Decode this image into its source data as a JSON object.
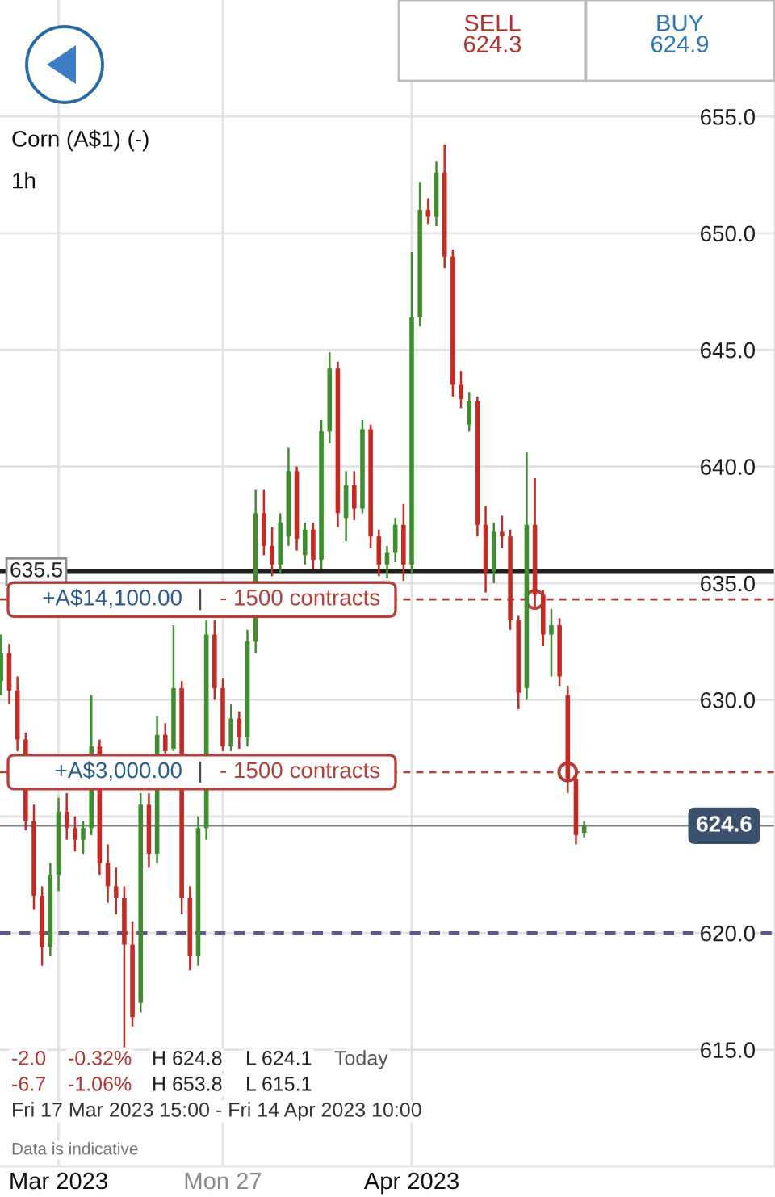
{
  "chart_data": {
    "type": "candlestick",
    "title": "Corn (A$1) (-)",
    "subtitle": "1h",
    "categories": [
      null,
      null,
      null,
      null,
      null,
      null,
      null,
      "Mar 2023",
      null,
      null,
      null,
      null,
      null,
      null,
      null,
      null,
      null,
      null,
      null,
      null,
      null,
      null,
      null,
      null,
      null,
      null,
      null,
      "Mon 27",
      null,
      null,
      null,
      null,
      null,
      null,
      null,
      null,
      null,
      null,
      null,
      null,
      null,
      null,
      null,
      null,
      null,
      null,
      null,
      null,
      null,
      null,
      "Apr 2023",
      null,
      null,
      null,
      null,
      null,
      null,
      null,
      null,
      null,
      null,
      null,
      null,
      null,
      null,
      null,
      null,
      null,
      null,
      null,
      null,
      null
    ],
    "ohlc": [
      [
        630.8,
        632.8,
        630.2,
        632.0
      ],
      [
        632.0,
        632.4,
        629.8,
        630.4
      ],
      [
        630.4,
        631.0,
        627.8,
        628.3
      ],
      [
        628.3,
        628.6,
        624.4,
        624.8
      ],
      [
        624.8,
        625.5,
        621.0,
        621.6
      ],
      [
        621.6,
        622.0,
        618.6,
        619.4
      ],
      [
        619.4,
        623.0,
        619.0,
        622.5
      ],
      [
        622.5,
        625.8,
        621.8,
        625.2
      ],
      [
        625.2,
        626.0,
        624.0,
        624.5
      ],
      [
        624.5,
        625.0,
        623.5,
        624.0
      ],
      [
        624.0,
        624.8,
        623.4,
        624.5
      ],
      [
        624.5,
        630.2,
        624.2,
        628.0
      ],
      [
        628.0,
        628.3,
        622.5,
        623.0
      ],
      [
        623.0,
        623.8,
        621.3,
        622.0
      ],
      [
        622.0,
        622.8,
        620.8,
        621.5
      ],
      [
        621.5,
        622.0,
        615.1,
        619.5
      ],
      [
        619.5,
        620.5,
        616.0,
        616.4
      ],
      [
        617.0,
        626.0,
        616.6,
        625.5
      ],
      [
        625.5,
        626.0,
        622.8,
        623.4
      ],
      [
        623.4,
        629.3,
        623.0,
        628.5
      ],
      [
        628.5,
        629.0,
        627.7,
        627.8
      ],
      [
        627.9,
        633.2,
        627.8,
        630.5
      ],
      [
        630.5,
        630.8,
        620.8,
        621.5
      ],
      [
        621.5,
        622.0,
        618.4,
        619.0
      ],
      [
        619.0,
        625.0,
        618.6,
        624.5
      ],
      [
        624.5,
        633.4,
        624.0,
        632.8
      ],
      [
        632.8,
        633.4,
        630.0,
        630.5
      ],
      [
        630.5,
        630.9,
        627.8,
        628.0
      ],
      [
        628.0,
        629.8,
        627.8,
        629.2
      ],
      [
        629.2,
        629.5,
        627.9,
        628.4
      ],
      [
        628.4,
        633.0,
        628.0,
        632.5
      ],
      [
        632.5,
        639.0,
        632.0,
        638.0
      ],
      [
        638.0,
        639.0,
        636.2,
        636.6
      ],
      [
        636.6,
        637.4,
        635.3,
        635.8
      ],
      [
        635.8,
        638.0,
        635.4,
        637.6
      ],
      [
        637.0,
        640.8,
        636.6,
        639.8
      ],
      [
        639.8,
        640.0,
        636.4,
        636.9
      ],
      [
        636.2,
        637.6,
        635.8,
        637.3
      ],
      [
        637.3,
        637.6,
        635.6,
        636.0
      ],
      [
        636.0,
        642.0,
        635.6,
        641.5
      ],
      [
        641.5,
        644.9,
        641.0,
        644.2
      ],
      [
        644.2,
        644.5,
        637.4,
        638.0
      ],
      [
        637.8,
        639.8,
        636.8,
        639.2
      ],
      [
        639.2,
        639.8,
        637.7,
        638.2
      ],
      [
        638.2,
        642.0,
        638.0,
        641.6
      ],
      [
        641.6,
        641.8,
        636.5,
        637.0
      ],
      [
        637.0,
        637.3,
        635.3,
        635.8
      ],
      [
        635.8,
        636.6,
        635.2,
        636.3
      ],
      [
        636.3,
        637.8,
        635.9,
        637.5
      ],
      [
        637.5,
        638.4,
        635.1,
        635.8
      ],
      [
        635.8,
        649.2,
        635.4,
        646.4
      ],
      [
        646.4,
        652.2,
        646.0,
        651.0
      ],
      [
        651.0,
        651.5,
        650.4,
        650.7
      ],
      [
        650.7,
        653.1,
        650.3,
        652.6
      ],
      [
        652.6,
        653.8,
        648.5,
        649.0
      ],
      [
        649.0,
        649.3,
        643.0,
        643.5
      ],
      [
        643.5,
        644.1,
        642.5,
        642.9
      ],
      [
        641.8,
        643.2,
        641.5,
        642.8
      ],
      [
        642.8,
        643.0,
        637.0,
        637.5
      ],
      [
        637.5,
        638.3,
        634.6,
        635.5
      ],
      [
        635.5,
        637.6,
        635.0,
        637.2
      ],
      [
        637.2,
        637.9,
        636.5,
        637.0
      ],
      [
        637.0,
        637.3,
        633.0,
        633.4
      ],
      [
        633.4,
        633.6,
        629.6,
        630.3
      ],
      [
        630.5,
        640.6,
        630.0,
        637.5
      ],
      [
        637.5,
        639.5,
        634.0,
        634.5
      ],
      [
        634.5,
        634.7,
        632.3,
        632.8
      ],
      [
        632.8,
        633.9,
        631.0,
        633.2
      ],
      [
        633.2,
        633.5,
        630.6,
        631.0
      ],
      [
        630.2,
        630.6,
        626.0,
        626.6
      ],
      [
        626.6,
        626.9,
        623.8,
        624.2
      ],
      [
        624.3,
        624.8,
        624.1,
        624.6
      ]
    ],
    "colors": [
      "#3e8e30",
      "#c52b22",
      "#c52b22",
      "#c52b22",
      "#c52b22",
      "#c52b22",
      "#3e8e30",
      "#3e8e30",
      "#c52b22",
      "#c52b22",
      "#3e8e30",
      "#3e8e30",
      "#c52b22",
      "#c52b22",
      "#c52b22",
      "#c52b22",
      "#c52b22",
      "#3e8e30",
      "#c52b22",
      "#3e8e30",
      "#c52b22",
      "#3e8e30",
      "#c52b22",
      "#c52b22",
      "#3e8e30",
      "#3e8e30",
      "#c52b22",
      "#c52b22",
      "#3e8e30",
      "#c52b22",
      "#3e8e30",
      "#3e8e30",
      "#c52b22",
      "#c52b22",
      "#3e8e30",
      "#3e8e30",
      "#c52b22",
      "#3e8e30",
      "#c52b22",
      "#3e8e30",
      "#3e8e30",
      "#c52b22",
      "#3e8e30",
      "#c52b22",
      "#3e8e30",
      "#c52b22",
      "#c52b22",
      "#3e8e30",
      "#3e8e30",
      "#c52b22",
      "#3e8e30",
      "#3e8e30",
      "#c52b22",
      "#3e8e30",
      "#c52b22",
      "#c52b22",
      "#c52b22",
      "#3e8e30",
      "#c52b22",
      "#c52b22",
      "#3e8e30",
      "#c52b22",
      "#c52b22",
      "#c52b22",
      "#3e8e30",
      "#c52b22",
      "#c52b22",
      "#3e8e30",
      "#c52b22",
      "#c52b22",
      "#c52b22",
      "#3e8e30"
    ],
    "series": [
      {
        "type": "scatter",
        "color": "#b5403a",
        "marker": "circle",
        "values": [
          null,
          null,
          null,
          null,
          null,
          null,
          null,
          null,
          null,
          null,
          null,
          null,
          null,
          null,
          null,
          null,
          null,
          null,
          null,
          null,
          null,
          null,
          null,
          null,
          null,
          null,
          null,
          null,
          null,
          null,
          null,
          null,
          null,
          null,
          null,
          null,
          null,
          null,
          null,
          null,
          null,
          null,
          null,
          null,
          null,
          null,
          null,
          null,
          null,
          null,
          null,
          null,
          null,
          null,
          null,
          null,
          null,
          null,
          null,
          null,
          null,
          null,
          null,
          null,
          null,
          634.3,
          null,
          null,
          null,
          626.9,
          null,
          null
        ]
      }
    ],
    "ylim": [
      610.0,
      660.0
    ],
    "yticks": [
      {
        "value": 615,
        "label": "615.0"
      },
      {
        "value": 620,
        "label": "620.0"
      },
      {
        "value": 625,
        "label": null
      },
      {
        "value": 630,
        "label": "630.0"
      },
      {
        "value": 635,
        "label": "635.0"
      },
      {
        "value": 640,
        "label": "640.0"
      },
      {
        "value": 645,
        "label": "645.0"
      },
      {
        "value": 650,
        "label": "650.0"
      },
      {
        "value": 655,
        "label": "655.0"
      }
    ],
    "grid": true,
    "ref_lines": [
      {
        "axis": "y",
        "value": 635.5,
        "label": "635.5",
        "color": "#1f1f1f"
      },
      {
        "axis": "y",
        "value": 634.3,
        "label": "+A$14,100.00 | - 1500 contracts",
        "color": "#b5403a",
        "line_style": "dashed"
      },
      {
        "axis": "y",
        "value": 626.9,
        "label": "+A$3,000.00 | - 1500 contracts",
        "color": "#b5403a",
        "line_style": "dashed"
      },
      {
        "axis": "y",
        "value": 624.6,
        "label": "624.6",
        "color": "#7d8590"
      },
      {
        "axis": "y",
        "value": 620.0,
        "color": "#5c5693",
        "line_style": "dashed"
      }
    ],
    "annotations": [
      "SELL\n624.3",
      "BUY\n624.9",
      "-2.0",
      "-0.32%",
      "H 624.8",
      "L 624.1",
      "Today",
      "-6.7",
      "-1.06%",
      "H 653.8",
      "L 615.1",
      "Fri 17 Mar 2023 15:00 - Fri 14 Apr 2023 10:00",
      "Data is indicative"
    ]
  }
}
